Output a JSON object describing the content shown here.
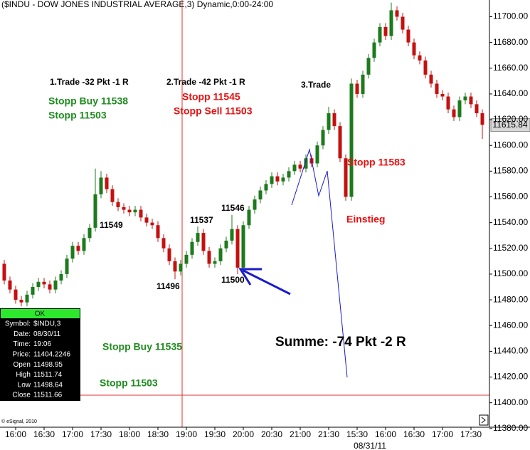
{
  "chart_data": {
    "type": "candlestick",
    "title": "($INDU - DOW JONES INDUSTRIAL AVERAGE,3) Dynamic,0:00-24:00",
    "categories": [
      null,
      null,
      "16:00",
      null,
      null,
      null,
      null,
      "16:30",
      null,
      null,
      null,
      null,
      "17:00",
      null,
      null,
      null,
      null,
      "17:30",
      null,
      null,
      null,
      null,
      "18:00",
      null,
      null,
      null,
      null,
      "18:30",
      null,
      null,
      null,
      null,
      "19:00",
      null,
      null,
      null,
      null,
      "19:30",
      null,
      null,
      null,
      null,
      "20:00",
      null,
      null,
      null,
      null,
      "20:30",
      null,
      null,
      null,
      null,
      "21:00",
      null,
      null,
      null,
      null,
      "21:30",
      null,
      null,
      null,
      null,
      "15:30",
      null,
      null,
      null,
      null,
      "16:00",
      null,
      null,
      null,
      null,
      "16:30",
      null,
      null,
      null,
      null,
      "17:00",
      null,
      null,
      null,
      null,
      "17:30",
      null,
      null
    ],
    "date_label": "08/31/11",
    "open": [
      11508,
      11495,
      11488,
      11480,
      11478,
      11484,
      11490,
      11494,
      11492,
      11488,
      11495,
      11500,
      11512,
      11522,
      11518,
      11528,
      11536,
      11562,
      11575,
      11566,
      11556,
      11552,
      11550,
      11548,
      11550,
      11544,
      11540,
      11538,
      11528,
      11520,
      11510,
      11502,
      11508,
      11515,
      11525,
      11532,
      11518,
      11508,
      11510,
      11520,
      11526,
      11535,
      11505,
      11538,
      11550,
      11558,
      11565,
      11570,
      11576,
      11572,
      11575,
      11580,
      11585,
      11582,
      11590,
      11586,
      11600,
      11612,
      11625,
      11615,
      11590,
      11560,
      11648,
      11640,
      11655,
      11668,
      11680,
      11692,
      11685,
      11705,
      11700,
      11690,
      11680,
      11670,
      11666,
      11655,
      11648,
      11640,
      11638,
      11628,
      11622,
      11635,
      11638,
      11632,
      11625
    ],
    "high": [
      11511,
      11498,
      11491,
      11483,
      11487,
      11493,
      11497,
      11497,
      11495,
      11498,
      11503,
      11515,
      11525,
      11525,
      11531,
      11539,
      11582,
      11580,
      11578,
      11569,
      11559,
      11555,
      11553,
      11553,
      11553,
      11547,
      11543,
      11541,
      11531,
      11523,
      11513,
      11511,
      11518,
      11528,
      11537,
      11535,
      11521,
      11513,
      11523,
      11529,
      11546,
      11538,
      11541,
      11553,
      11561,
      11568,
      11573,
      11579,
      11579,
      11578,
      11583,
      11588,
      11588,
      11593,
      11593,
      11603,
      11615,
      11630,
      11628,
      11618,
      11593,
      11652,
      11651,
      11658,
      11671,
      11683,
      11695,
      11695,
      11711,
      11708,
      11703,
      11693,
      11683,
      11673,
      11669,
      11658,
      11651,
      11643,
      11641,
      11631,
      11638,
      11641,
      11641,
      11635,
      11628
    ],
    "low": [
      11492,
      11485,
      11477,
      11475,
      11475,
      11481,
      11487,
      11489,
      11485,
      11485,
      11492,
      11497,
      11509,
      11515,
      11515,
      11525,
      11533,
      11559,
      11563,
      11553,
      11549,
      11547,
      11545,
      11545,
      11541,
      11537,
      11535,
      11525,
      11517,
      11507,
      11496,
      11499,
      11505,
      11512,
      11522,
      11515,
      11505,
      11505,
      11507,
      11517,
      11523,
      11500,
      11502,
      11535,
      11547,
      11555,
      11562,
      11567,
      11569,
      11569,
      11572,
      11577,
      11579,
      11579,
      11583,
      11583,
      11597,
      11609,
      11612,
      11587,
      11557,
      11557,
      11637,
      11637,
      11652,
      11665,
      11677,
      11682,
      11682,
      11697,
      11687,
      11677,
      11667,
      11663,
      11652,
      11645,
      11637,
      11635,
      11625,
      11619,
      11619,
      11632,
      11629,
      11622,
      11605
    ],
    "close": [
      11495,
      11488,
      11480,
      11478,
      11484,
      11490,
      11494,
      11492,
      11488,
      11495,
      11500,
      11512,
      11522,
      11518,
      11528,
      11536,
      11562,
      11575,
      11566,
      11556,
      11552,
      11550,
      11548,
      11550,
      11544,
      11540,
      11538,
      11528,
      11520,
      11510,
      11502,
      11508,
      11515,
      11525,
      11532,
      11518,
      11508,
      11510,
      11520,
      11526,
      11535,
      11505,
      11538,
      11550,
      11558,
      11565,
      11570,
      11576,
      11572,
      11575,
      11580,
      11585,
      11582,
      11590,
      11586,
      11600,
      11612,
      11625,
      11615,
      11590,
      11560,
      11648,
      11640,
      11655,
      11668,
      11680,
      11692,
      11685,
      11705,
      11700,
      11690,
      11680,
      11670,
      11666,
      11655,
      11648,
      11640,
      11638,
      11628,
      11622,
      11635,
      11638,
      11632,
      11625,
      11616
    ],
    "up_color": "#1d7a1d",
    "down_color": "#c41010",
    "ylim": [
      11381,
      11713
    ],
    "yticks": [
      {
        "value": 11380,
        "label": "11380.00"
      },
      {
        "value": 11400,
        "label": "11400.00"
      },
      {
        "value": 11420,
        "label": "11420.00"
      },
      {
        "value": 11440,
        "label": "11440.00"
      },
      {
        "value": 11460,
        "label": "11460.00"
      },
      {
        "value": 11480,
        "label": "11480.00"
      },
      {
        "value": 11500,
        "label": "11500.00"
      },
      {
        "value": 11520,
        "label": "11520.00"
      },
      {
        "value": 11540,
        "label": "11540.00"
      },
      {
        "value": 11560,
        "label": "11560.00"
      },
      {
        "value": 11580,
        "label": "11580.00"
      },
      {
        "value": 11600,
        "label": "11600.00"
      },
      {
        "value": 11620,
        "label": "11620.00"
      },
      {
        "value": 11640,
        "label": "11640.00"
      },
      {
        "value": 11660,
        "label": "11660.00"
      },
      {
        "value": 11680,
        "label": "11680.00"
      },
      {
        "value": 11700,
        "label": "11700.00"
      }
    ],
    "last_price": 11615.84,
    "annotations": [
      {
        "text": "1.Trade -32 Pkt -1 R",
        "color": "#000000"
      },
      {
        "text": "Stopp Buy 11538",
        "color": "#1e8c1e"
      },
      {
        "text": "Stopp 11503",
        "color": "#1e8c1e"
      },
      {
        "text": "2.Trade -42 Pkt -1 R",
        "color": "#000000"
      },
      {
        "text": "Stopp 11545",
        "color": "#e81010"
      },
      {
        "text": "Stopp Sell 11503",
        "color": "#e81010"
      },
      {
        "text": "3.Trade",
        "color": "#000000"
      },
      {
        "text": "Stopp 11583",
        "color": "#e81010"
      },
      {
        "text": "Einstieg",
        "color": "#e81010"
      },
      {
        "text": "11549",
        "color": "#000000"
      },
      {
        "text": "11537",
        "color": "#000000"
      },
      {
        "text": "11546",
        "color": "#000000"
      },
      {
        "text": "11496",
        "color": "#000000"
      },
      {
        "text": "11500",
        "color": "#000000"
      },
      {
        "text": "Stopp Buy 11535",
        "color": "#1e8c1e"
      },
      {
        "text": "Stopp 11503",
        "color": "#1e8c1e"
      },
      {
        "text": "Summe: -74 Pkt -2 R",
        "color": "#000000"
      }
    ],
    "data_window": {
      "header": "OK",
      "rows": [
        [
          "Symbol:",
          "$INDU,3"
        ],
        [
          "Date:",
          "08/30/11"
        ],
        [
          "Time:",
          "19:06"
        ],
        [
          "Price:",
          "11404.2246"
        ],
        [
          "Open",
          "11498.95"
        ],
        [
          "High",
          "11511.74"
        ],
        [
          "Low",
          "11498.64"
        ],
        [
          "Close",
          "11511.66"
        ]
      ]
    },
    "copyright": "© eSignal, 2010"
  }
}
